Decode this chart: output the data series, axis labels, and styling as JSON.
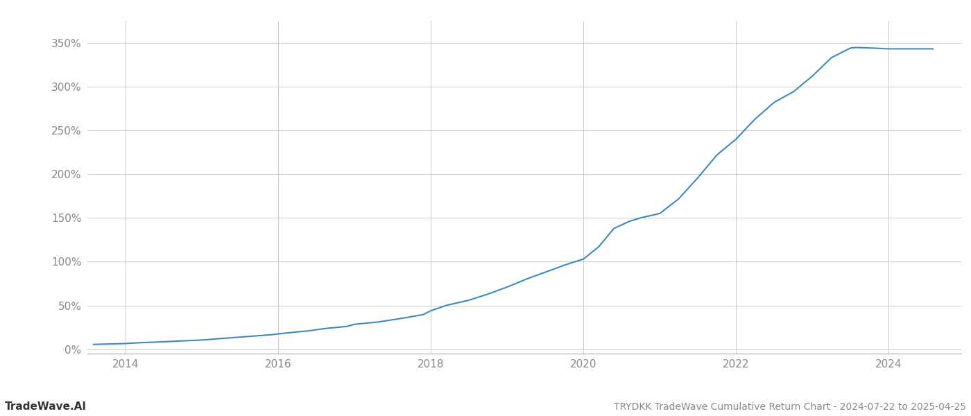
{
  "title": "TRYDKK TradeWave Cumulative Return Chart - 2024-07-22 to 2025-04-25",
  "watermark": "TradeWave.AI",
  "line_color": "#3a8abf",
  "line_width": 1.5,
  "background_color": "#ffffff",
  "grid_color": "#cccccc",
  "xlim": [
    2013.5,
    2024.95
  ],
  "ylim": [
    -0.05,
    3.75
  ],
  "yticks": [
    0.0,
    0.5,
    1.0,
    1.5,
    2.0,
    2.5,
    3.0,
    3.5
  ],
  "ytick_labels": [
    "0%",
    "50%",
    "100%",
    "150%",
    "200%",
    "250%",
    "300%",
    "350%"
  ],
  "xticks": [
    2014,
    2016,
    2018,
    2020,
    2022,
    2024
  ],
  "x": [
    2013.58,
    2014.0,
    2014.2,
    2014.5,
    2014.75,
    2015.0,
    2015.3,
    2015.6,
    2015.9,
    2016.1,
    2016.4,
    2016.6,
    2016.9,
    2017.0,
    2017.3,
    2017.6,
    2017.9,
    2018.0,
    2018.2,
    2018.5,
    2018.75,
    2019.0,
    2019.25,
    2019.5,
    2019.75,
    2020.0,
    2020.2,
    2020.4,
    2020.6,
    2020.75,
    2021.0,
    2021.25,
    2021.5,
    2021.75,
    2022.0,
    2022.25,
    2022.5,
    2022.75,
    2023.0,
    2023.25,
    2023.5,
    2023.58,
    2023.75,
    2024.0,
    2024.3,
    2024.58
  ],
  "y": [
    0.055,
    0.065,
    0.075,
    0.085,
    0.095,
    0.105,
    0.125,
    0.145,
    0.165,
    0.185,
    0.21,
    0.235,
    0.26,
    0.285,
    0.31,
    0.35,
    0.395,
    0.44,
    0.5,
    0.56,
    0.63,
    0.71,
    0.8,
    0.88,
    0.96,
    1.03,
    1.17,
    1.38,
    1.46,
    1.5,
    1.55,
    1.72,
    1.96,
    2.22,
    2.4,
    2.63,
    2.82,
    2.94,
    3.12,
    3.33,
    3.44,
    3.445,
    3.44,
    3.43,
    3.43,
    3.43
  ]
}
